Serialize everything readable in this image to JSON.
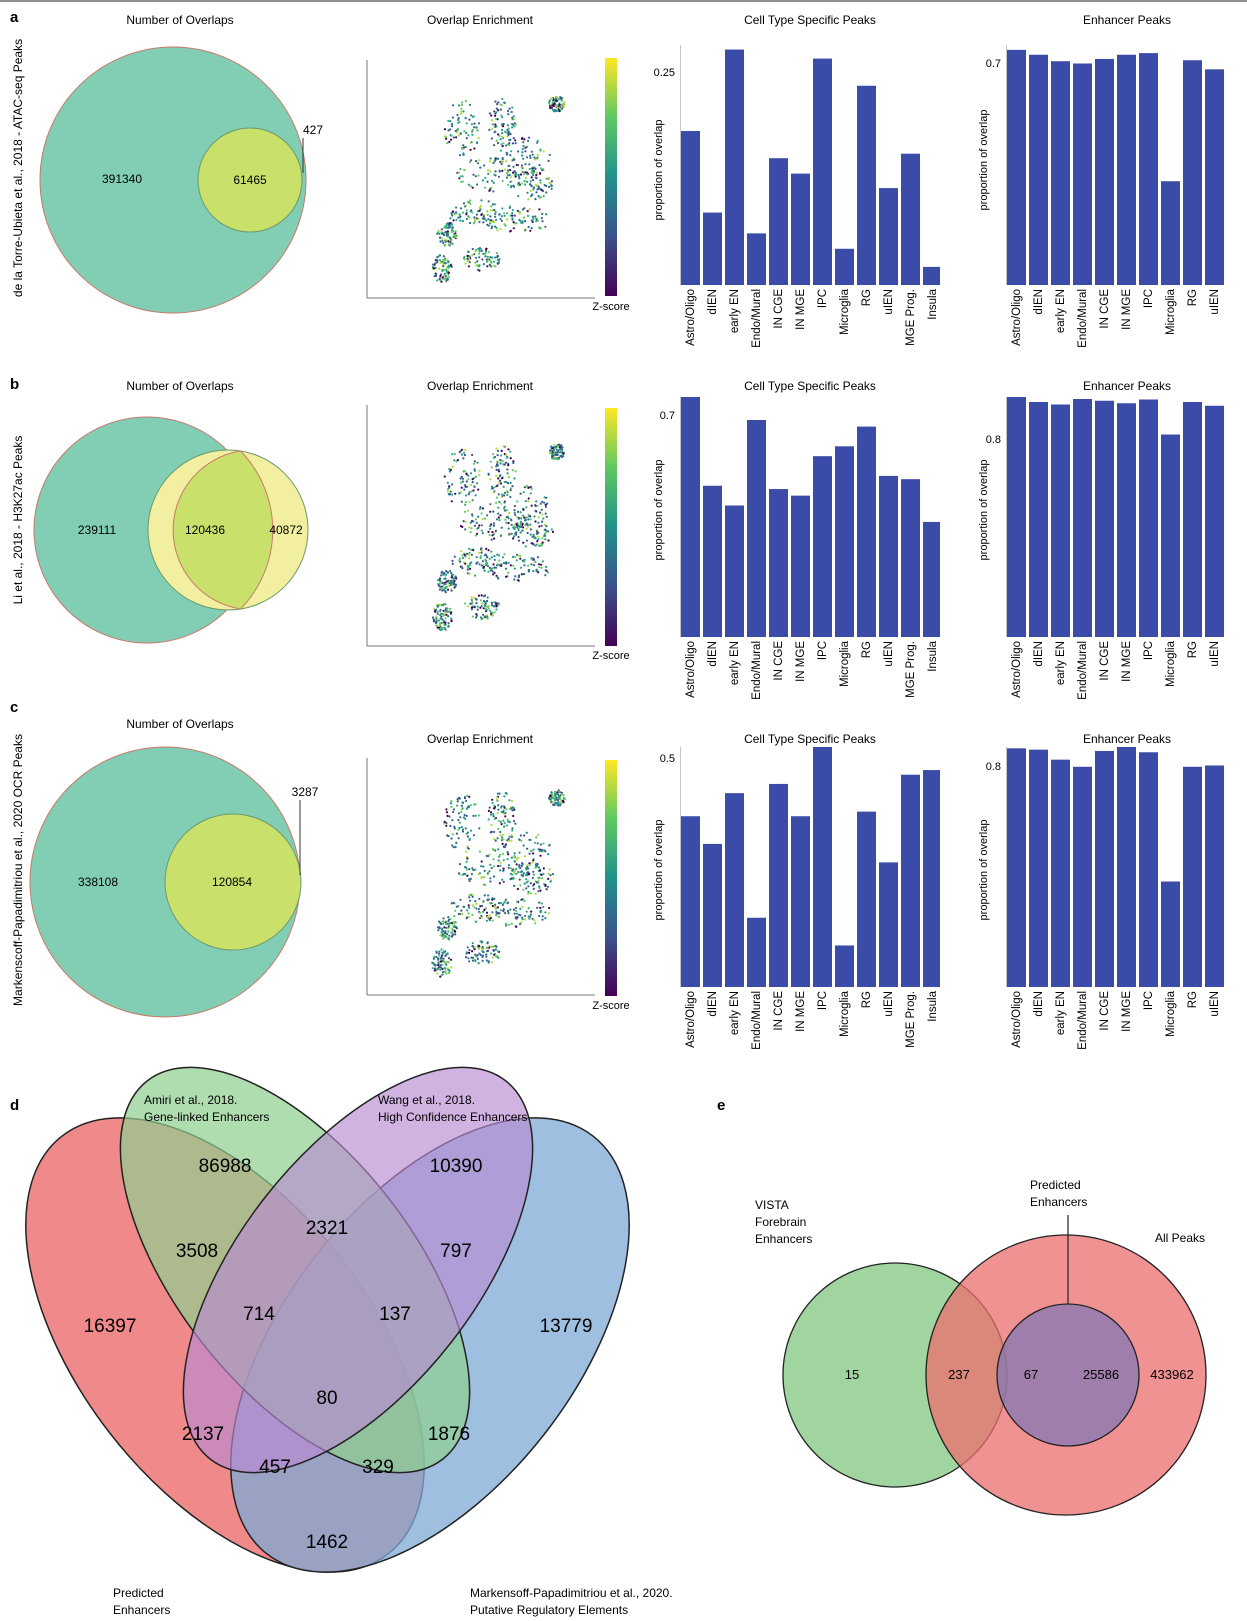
{
  "panel_letters": [
    "a",
    "b",
    "c",
    "d",
    "e"
  ],
  "colors": {
    "bar": "#3a4ba8",
    "venn_outer": "#82ceb4",
    "venn_inner": "#c9e06a",
    "venn_yellow": "#f2f0a0",
    "red": "#ec6d6d",
    "green": "#8fce8f",
    "purple": "#b98ad2",
    "blue": "#7ea9d6"
  },
  "rows": [
    {
      "letter": "a",
      "side_label": "de la Torre-Ubieta et al., 2018 - ATAC-seq Peaks",
      "venn": {
        "title": "Number of Overlaps",
        "left": "391340",
        "middle": "61465",
        "right": "427"
      },
      "umap": {
        "title": "Overlap Enrichment",
        "colorbar_label": "Z-score"
      },
      "cell_type": {
        "title": "Cell Type Specific Peaks",
        "ylabel": "proportion of overlap",
        "top_tick": "0.25"
      },
      "enhancer": {
        "title": "Enhancer Peaks",
        "ylabel": "proportion of overlap",
        "top_tick": "0.7"
      }
    },
    {
      "letter": "b",
      "side_label": "Li et al., 2018 - H3K27ac Peaks",
      "venn": {
        "title": "Number of Overlaps",
        "left": "239111",
        "middle": "120436",
        "right": "40872"
      },
      "umap": {
        "title": "Overlap Enrichment",
        "colorbar_label": "Z-score"
      },
      "cell_type": {
        "title": "Cell Type Specific Peaks",
        "ylabel": "proportion of overlap",
        "top_tick": "0.7"
      },
      "enhancer": {
        "title": "Enhancer Peaks",
        "ylabel": "proportion of overlap",
        "top_tick": "0.8"
      }
    },
    {
      "letter": "c",
      "side_label": "Markenscoff-Papadimitriou et al., 2020 OCR Peaks",
      "venn": {
        "title": "Number of Overlaps",
        "left": "338108",
        "middle": "120854",
        "right": "3287"
      },
      "umap": {
        "title": "Overlap Enrichment",
        "colorbar_label": "Z-score"
      },
      "cell_type": {
        "title": "Cell Type Specific Peaks",
        "ylabel": "proportion of overlap",
        "top_tick": "0.5"
      },
      "enhancer": {
        "title": "Enhancer Peaks",
        "ylabel": "proportion of overlap",
        "top_tick": "0.8"
      }
    }
  ],
  "chart_data": [
    {
      "type": "bar",
      "panel": "a",
      "title": "Cell Type Specific Peaks",
      "ylabel": "proportion of overlap",
      "categories": [
        "Astro/Oligo",
        "dIEN",
        "early EN",
        "Endo/Mural",
        "IN CGE",
        "IN MGE",
        "IPC",
        "Microglia",
        "RG",
        "uIEN",
        "MGE Prog.",
        "Insula"
      ],
      "values": [
        0.17,
        0.08,
        0.26,
        0.057,
        0.14,
        0.123,
        0.25,
        0.04,
        0.22,
        0.107,
        0.145,
        0.02
      ],
      "ylim": [
        0,
        0.265
      ],
      "yticks": [
        0.25
      ]
    },
    {
      "type": "bar",
      "panel": "a",
      "title": "Enhancer Peaks",
      "ylabel": "proportion of overlap",
      "categories": [
        "Astro/Oligo",
        "dIEN",
        "early EN",
        "Endo/Mural",
        "IN CGE",
        "IN MGE",
        "IPC",
        "Microglia",
        "RG",
        "uIEN"
      ],
      "values": [
        0.725,
        0.71,
        0.69,
        0.683,
        0.697,
        0.71,
        0.715,
        0.32,
        0.693,
        0.665
      ],
      "ylim": [
        0,
        0.74
      ],
      "yticks": [
        0.7
      ]
    },
    {
      "type": "bar",
      "panel": "b",
      "title": "Cell Type Specific Peaks",
      "ylabel": "proportion of overlap",
      "categories": [
        "Astro/Oligo",
        "dIEN",
        "early EN",
        "Endo/Mural",
        "IN CGE",
        "IN MGE",
        "IPC",
        "Microglia",
        "RG",
        "uIEN",
        "MGE Prog.",
        "Insula"
      ],
      "values": [
        0.73,
        0.46,
        0.4,
        0.66,
        0.45,
        0.43,
        0.55,
        0.58,
        0.64,
        0.49,
        0.48,
        0.35
      ],
      "ylim": [
        0,
        0.73
      ],
      "yticks": [
        0.7
      ]
    },
    {
      "type": "bar",
      "panel": "b",
      "title": "Enhancer Peaks",
      "ylabel": "proportion of overlap",
      "categories": [
        "Astro/Oligo",
        "dIEN",
        "early EN",
        "Endo/Mural",
        "IN CGE",
        "IN MGE",
        "IPC",
        "Microglia",
        "RG",
        "uIEN"
      ],
      "values": [
        0.96,
        0.94,
        0.93,
        0.952,
        0.945,
        0.935,
        0.95,
        0.81,
        0.94,
        0.925
      ],
      "ylim": [
        0,
        0.96
      ],
      "yticks": [
        0.8
      ]
    },
    {
      "type": "bar",
      "panel": "c",
      "title": "Cell Type Specific Peaks",
      "ylabel": "proportion of overlap",
      "categories": [
        "Astro/Oligo",
        "dIEN",
        "early EN",
        "Endo/Mural",
        "IN CGE",
        "IN MGE",
        "IPC",
        "Microglia",
        "RG",
        "uIEN",
        "MGE Prog.",
        "Insula"
      ],
      "values": [
        0.37,
        0.31,
        0.42,
        0.15,
        0.44,
        0.37,
        0.52,
        0.09,
        0.38,
        0.27,
        0.46,
        0.47
      ],
      "ylim": [
        0,
        0.52
      ],
      "yticks": [
        0.5
      ]
    },
    {
      "type": "bar",
      "panel": "c",
      "title": "Enhancer Peaks",
      "ylabel": "proportion of overlap",
      "categories": [
        "Astro/Oligo",
        "dIEN",
        "early EN",
        "Endo/Mural",
        "IN CGE",
        "IN MGE",
        "IPC",
        "Microglia",
        "RG",
        "uIEN"
      ],
      "values": [
        0.905,
        0.9,
        0.862,
        0.835,
        0.895,
        0.91,
        0.89,
        0.4,
        0.835,
        0.84
      ],
      "ylim": [
        0,
        0.91
      ],
      "yticks": [
        0.8
      ]
    }
  ],
  "venn_d": {
    "labels": {
      "amiri": "Amiri et al., 2018.",
      "amiri2": "Gene-linked Enhancers",
      "wang": "Wang et al., 2018.",
      "wang2": "High Confidence Enhancers",
      "predicted": "Predicted",
      "predicted2": "Enhancers",
      "markenscoff": "Markensoff-Papadimitriou et al., 2020.",
      "markenscoff2": "Putative Regulatory Elements"
    },
    "counts": {
      "red_only": "16397",
      "green_only": "86988",
      "purple_only": "10390",
      "blue_only": "13779",
      "red_green": "3508",
      "green_purple": "2321",
      "purple_blue": "797",
      "red_green_purple": "714",
      "green_purple_blue": "137",
      "all": "80",
      "red_purple": "2137",
      "green_blue": "1876",
      "red_purple_blue": "457",
      "red_green_blue": "329",
      "red_blue": "1462"
    }
  },
  "venn_e": {
    "labels": {
      "vista1": "VISTA",
      "vista2": "Forebrain",
      "vista3": "Enhancers",
      "pred1": "Predicted",
      "pred2": "Enhancers",
      "all": "All Peaks"
    },
    "counts": {
      "vista_only": "15",
      "vista_all": "237",
      "vista_pred": "67",
      "pred_only": "25586",
      "all_only": "433962"
    }
  }
}
